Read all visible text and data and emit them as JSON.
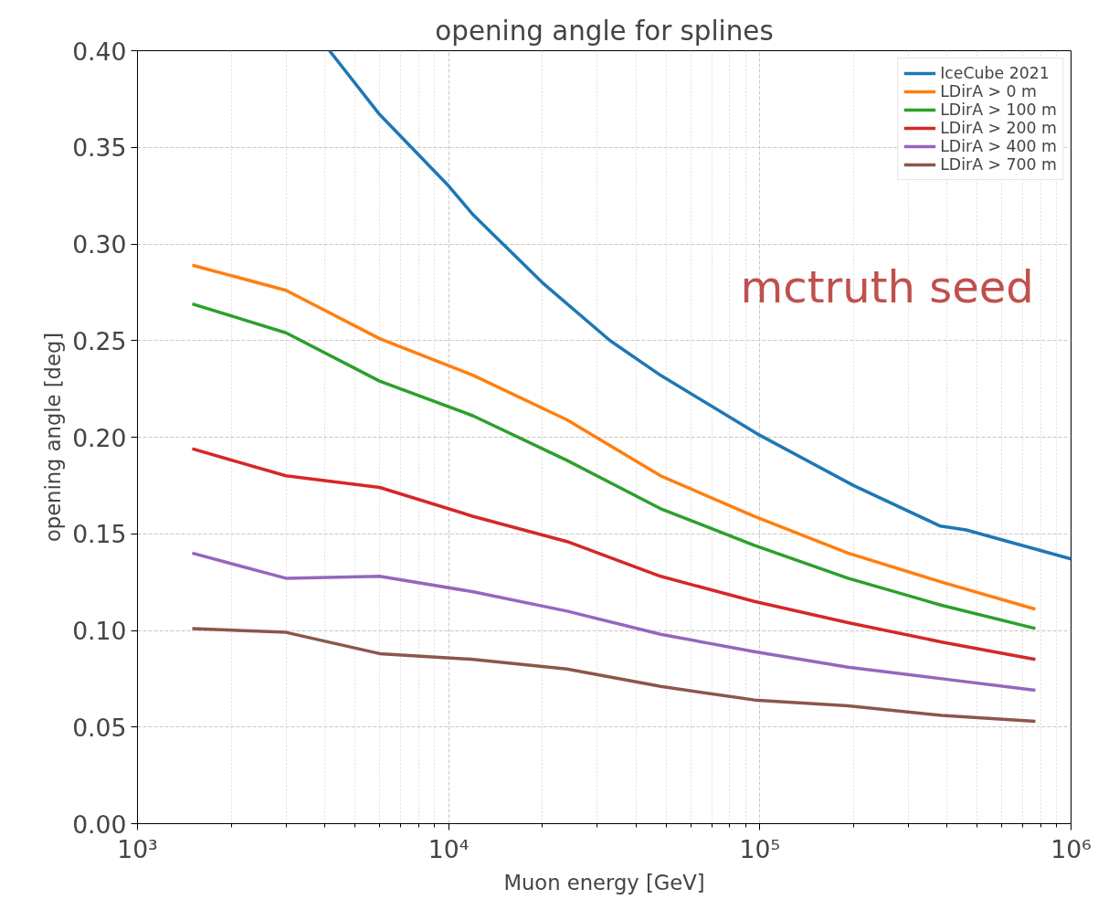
{
  "chart_data": {
    "type": "line",
    "title": "opening angle for splines",
    "xlabel": "Muon energy [GeV]",
    "ylabel": "opening angle [deg]",
    "x": [
      1500,
      3000,
      6000,
      12000,
      24000,
      48000,
      96000,
      192000,
      384000,
      768000
    ],
    "series": [
      {
        "name": "IceCube 2021",
        "color": "#1f77b4",
        "x": [
          4140,
          6000,
          10000,
          12000,
          20000,
          33000,
          48000,
          100000,
          200000,
          380000,
          460000,
          1000000
        ],
        "values": [
          0.4,
          0.367,
          0.33,
          0.315,
          0.28,
          0.25,
          0.232,
          0.201,
          0.175,
          0.154,
          0.152,
          0.137
        ]
      },
      {
        "name": "LDirA > 0 m",
        "color": "#ff7f0e",
        "values": [
          0.289,
          0.276,
          0.251,
          0.232,
          0.209,
          0.18,
          0.159,
          0.14,
          0.125,
          0.111
        ]
      },
      {
        "name": "LDirA > 100 m",
        "color": "#2ca02c",
        "values": [
          0.269,
          0.254,
          0.229,
          0.211,
          0.188,
          0.163,
          0.144,
          0.127,
          0.113,
          0.101
        ]
      },
      {
        "name": "LDirA > 200 m",
        "color": "#d62728",
        "values": [
          0.194,
          0.18,
          0.174,
          0.159,
          0.146,
          0.128,
          0.115,
          0.104,
          0.094,
          0.085
        ]
      },
      {
        "name": "LDirA > 400 m",
        "color": "#9467bd",
        "values": [
          0.14,
          0.127,
          0.128,
          0.12,
          0.11,
          0.098,
          0.089,
          0.081,
          0.075,
          0.069
        ]
      },
      {
        "name": "LDirA > 700 m",
        "color": "#8c564b",
        "values": [
          0.101,
          0.099,
          0.088,
          0.085,
          0.08,
          0.071,
          0.064,
          0.061,
          0.056,
          0.053
        ]
      }
    ],
    "annotations": [
      "mctruth seed"
    ],
    "log": "x",
    "xlim": [
      1000,
      1000000
    ],
    "xticks": [
      {
        "value": 1000,
        "label": "10³"
      },
      {
        "value": 10000,
        "label": "10⁴"
      },
      {
        "value": 100000,
        "label": "10⁵"
      },
      {
        "value": 1000000,
        "label": "10⁶"
      }
    ],
    "ylim": [
      0,
      0.4
    ],
    "yticks": [
      {
        "value": 0,
        "label": "0.00"
      },
      {
        "value": 0.05,
        "label": "0.05"
      },
      {
        "value": 0.1,
        "label": "0.10"
      },
      {
        "value": 0.15,
        "label": "0.15"
      },
      {
        "value": 0.2,
        "label": "0.20"
      },
      {
        "value": 0.25,
        "label": "0.25"
      },
      {
        "value": 0.3,
        "label": "0.30"
      },
      {
        "value": 0.35,
        "label": "0.35"
      },
      {
        "value": 0.4,
        "label": "0.40"
      }
    ],
    "grid": true,
    "legend": "top right"
  }
}
